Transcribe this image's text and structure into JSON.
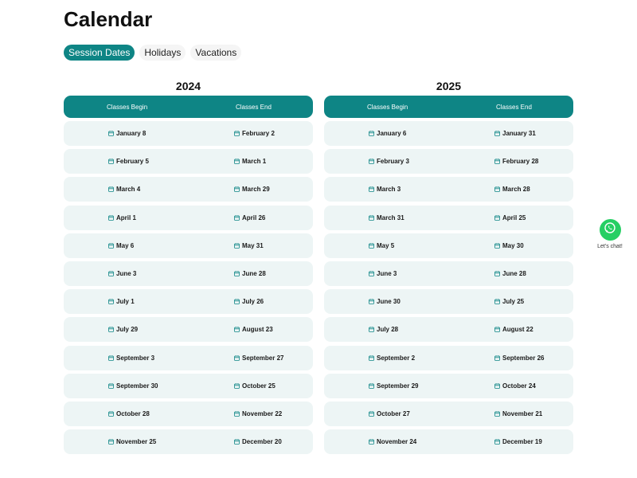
{
  "page": {
    "title": "Calendar"
  },
  "tabs": [
    {
      "label": "Session Dates",
      "active": true
    },
    {
      "label": "Holidays",
      "active": false
    },
    {
      "label": "Vacations",
      "active": false
    }
  ],
  "calendars": [
    {
      "year": "2024",
      "header": {
        "begin": "Classes Begin",
        "end": "Classes End"
      },
      "rows": [
        {
          "begin": "January 8",
          "end": "February 2"
        },
        {
          "begin": "February 5",
          "end": "March 1"
        },
        {
          "begin": "March 4",
          "end": "March 29"
        },
        {
          "begin": "April 1",
          "end": "April 26"
        },
        {
          "begin": "May 6",
          "end": "May 31"
        },
        {
          "begin": "June 3",
          "end": "June 28"
        },
        {
          "begin": "July 1",
          "end": "July 26"
        },
        {
          "begin": "July 29",
          "end": "August 23"
        },
        {
          "begin": "September 3",
          "end": "September 27"
        },
        {
          "begin": "September 30",
          "end": "October 25"
        },
        {
          "begin": "October 28",
          "end": "November 22"
        },
        {
          "begin": "November 25",
          "end": "December 20"
        }
      ]
    },
    {
      "year": "2025",
      "header": {
        "begin": "Classes Begin",
        "end": "Classes End"
      },
      "rows": [
        {
          "begin": "January 6",
          "end": "January 31"
        },
        {
          "begin": "February 3",
          "end": "February 28"
        },
        {
          "begin": "March 3",
          "end": "March 28"
        },
        {
          "begin": "March 31",
          "end": "April 25"
        },
        {
          "begin": "May 5",
          "end": "May 30"
        },
        {
          "begin": "June 3",
          "end": "June 28"
        },
        {
          "begin": "June 30",
          "end": "July 25"
        },
        {
          "begin": "July 28",
          "end": "August 22"
        },
        {
          "begin": "September 2",
          "end": "September 26"
        },
        {
          "begin": "September 29",
          "end": "October 24"
        },
        {
          "begin": "October 27",
          "end": "November 21"
        },
        {
          "begin": "November 24",
          "end": "December 19"
        }
      ]
    }
  ],
  "chat": {
    "label": "Let's chat!",
    "icon": "whatsapp-icon"
  },
  "colors": {
    "accent": "#0e8585",
    "row_bg": "#edf5f5",
    "chat_green": "#26cf64"
  }
}
